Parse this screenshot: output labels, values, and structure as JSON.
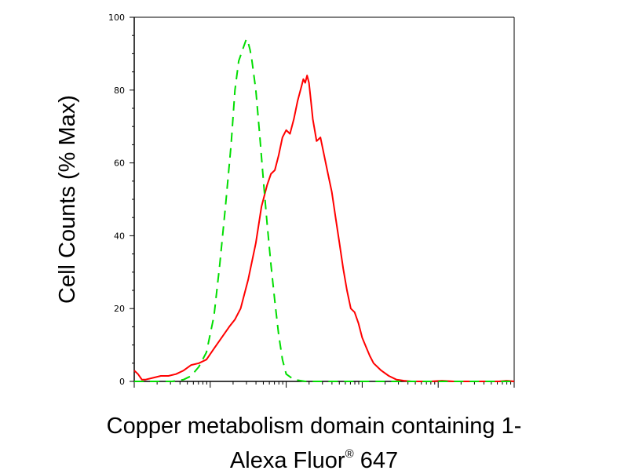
{
  "chart_data": {
    "type": "line",
    "title": "",
    "ylabel": "Cell Counts (% Max)",
    "xlabel": {
      "line1": "Copper metabolism domain containing 1-",
      "line2_text": "Alexa Fluor",
      "line2_super": "®",
      "line2_end": " 647"
    },
    "x_scale": "log",
    "x_tick_labels": [],
    "ylim": [
      0,
      100
    ],
    "yticks": [
      "0",
      "20",
      "40",
      "60",
      "80",
      "100"
    ],
    "grid": false,
    "series": [
      {
        "color": "#ff0000",
        "dash": "solid",
        "x": [
          0.0,
          0.01,
          0.02,
          0.03,
          0.05,
          0.07,
          0.09,
          0.11,
          0.13,
          0.15,
          0.17,
          0.19,
          0.21,
          0.23,
          0.25,
          0.265,
          0.28,
          0.3,
          0.32,
          0.335,
          0.35,
          0.36,
          0.37,
          0.38,
          0.39,
          0.4,
          0.41,
          0.42,
          0.43,
          0.44,
          0.445,
          0.45,
          0.455,
          0.46,
          0.465,
          0.47,
          0.475,
          0.48,
          0.49,
          0.5,
          0.51,
          0.52,
          0.53,
          0.54,
          0.55,
          0.56,
          0.57,
          0.58,
          0.59,
          0.6,
          0.61,
          0.62,
          0.63,
          0.65,
          0.67,
          0.69,
          0.71,
          0.73,
          0.75,
          0.78,
          0.81,
          0.84,
          0.87,
          0.9,
          0.93,
          0.96,
          0.98,
          1.0
        ],
        "y": [
          3,
          2,
          0.5,
          0.5,
          1,
          1.5,
          1.5,
          2,
          3,
          4.5,
          5,
          6,
          9,
          12,
          15,
          17,
          20,
          28,
          38,
          48,
          54,
          57,
          58,
          62,
          67,
          69,
          68,
          72,
          77,
          81,
          83,
          82,
          84,
          82,
          77,
          72,
          69,
          66,
          67,
          62,
          57,
          52,
          45,
          38,
          31,
          25,
          20,
          19,
          16,
          12,
          9.5,
          7,
          5,
          3,
          1.5,
          0.5,
          0.2,
          0,
          0,
          0,
          0.2,
          0,
          0,
          0,
          0,
          0,
          0.2,
          0
        ]
      },
      {
        "color": "#00dd00",
        "dash": "dashed",
        "x": [
          0.0,
          0.05,
          0.1,
          0.13,
          0.15,
          0.17,
          0.19,
          0.21,
          0.225,
          0.24,
          0.255,
          0.265,
          0.275,
          0.285,
          0.295,
          0.3,
          0.305,
          0.31,
          0.32,
          0.33,
          0.34,
          0.35,
          0.36,
          0.37,
          0.38,
          0.39,
          0.4,
          0.42,
          0.45,
          0.5,
          0.6,
          0.7,
          0.8,
          0.9,
          1.0
        ],
        "y": [
          0,
          0,
          0,
          0.5,
          1.5,
          4,
          8,
          18,
          32,
          48,
          65,
          80,
          88,
          91,
          94,
          93,
          91,
          88,
          80,
          68,
          55,
          43,
          32,
          22,
          13,
          6,
          2,
          0.5,
          0,
          0,
          0,
          0,
          0,
          0,
          0
        ]
      }
    ]
  }
}
